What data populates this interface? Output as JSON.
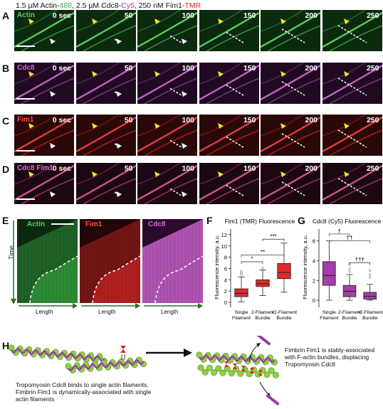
{
  "title": {
    "prefix": "1.5 µM Actin-",
    "actin_dye": "488",
    "mid1": ", 2.5 µM Cdc8-",
    "cdc8_dye": "Cy5",
    "mid2": ", 250 nM Fim1-",
    "fim1_dye": "TMR"
  },
  "panels": {
    "A": "A",
    "B": "B",
    "C": "C",
    "D": "D",
    "E": "E",
    "F": "F",
    "G": "G",
    "H": "H"
  },
  "rows": [
    {
      "label": "Actin",
      "cls": "actin",
      "label_color": "#54d35e"
    },
    {
      "label": "Cdc8",
      "cls": "cdc8",
      "label_color": "#d26bd0"
    },
    {
      "label": "Fim1",
      "cls": "fim1",
      "label_color": "#ff4b4b"
    },
    {
      "label": "Cdc8 Fim1",
      "cls": "merge",
      "label_color": "#e06bd0"
    }
  ],
  "times": [
    "0 sec",
    "50",
    "100",
    "150",
    "200",
    "250"
  ],
  "kymographs": [
    {
      "label": "Actin",
      "color": "#54d35e"
    },
    {
      "label": "Fim1",
      "color": "#ff4b4b"
    },
    {
      "label": "Cdc8",
      "color": "#d26bd0"
    }
  ],
  "kymo_axes": {
    "y": "Time",
    "x": "Length"
  },
  "chart_data": [
    {
      "type": "box",
      "title": "Fim1 (TMR) Fluorescence",
      "ylabel": "Fluorescence intensity, a.u.",
      "categories": [
        "Single Filament",
        "2-Filament Bundle",
        ">2-Filament Bundle"
      ],
      "yticks": [
        0,
        2,
        4,
        6,
        8,
        10,
        12
      ],
      "ylim": [
        -0.5,
        13
      ],
      "boxes": [
        {
          "min": 0.1,
          "q1": 1.0,
          "median": 1.6,
          "q3": 2.4,
          "max": 4.5,
          "outliers": [
            4.9,
            5.2,
            5.5
          ]
        },
        {
          "min": 1.2,
          "q1": 2.8,
          "median": 3.3,
          "q3": 4.0,
          "max": 5.7,
          "outliers": [
            6.0
          ]
        },
        {
          "min": 1.8,
          "q1": 4.2,
          "median": 5.3,
          "q3": 6.9,
          "max": 10.5,
          "outliers": []
        }
      ],
      "significance": [
        {
          "from": 0,
          "to": 1,
          "label": "*"
        },
        {
          "from": 0,
          "to": 2,
          "label": "**"
        },
        {
          "from": 1,
          "to": 2,
          "label": "***"
        }
      ],
      "color": "#e02a2a"
    },
    {
      "type": "box",
      "title": "Cdc8 (Cy5) Fluorescence",
      "ylabel": "Fluorescence intensity, a.u.",
      "categories": [
        "Single Filament",
        "2-Filament Bundle",
        ">2-Filament Bundle"
      ],
      "yticks": [
        0,
        2,
        4,
        6
      ],
      "ylim": [
        -0.5,
        7.2
      ],
      "boxes": [
        {
          "min": 0.0,
          "q1": 1.5,
          "median": 2.5,
          "q3": 3.9,
          "max": 6.0,
          "outliers": []
        },
        {
          "min": 0.0,
          "q1": 0.35,
          "median": 0.9,
          "q3": 1.5,
          "max": 2.6,
          "outliers": [
            2.9,
            3.2,
            3.6
          ]
        },
        {
          "min": 0.0,
          "q1": 0.1,
          "median": 0.4,
          "q3": 0.8,
          "max": 1.6,
          "outliers": [
            2.3,
            2.6,
            3.0
          ]
        }
      ],
      "significance": [
        {
          "from": 0,
          "to": 1,
          "label": "†"
        },
        {
          "from": 0,
          "to": 2,
          "label": "††"
        },
        {
          "from": 1,
          "to": 2,
          "label": "†††"
        }
      ],
      "color": "#a23ea8"
    }
  ],
  "schematic": {
    "left_caption": "Tropomyosin Cdc8 binds to single actin filaments, Fimbrin Fim1 is dynamically-associated with single actin filaments",
    "right_caption": "Fimbrin Fim1 is stably-associated with F-actin bundles, displacing Tropomyosin Cdc8",
    "colors": {
      "actin": "#8fd13f",
      "actin_edge": "#4f8f1f",
      "cdc8": "#9b3aa6",
      "fim1": "#d8232a"
    }
  }
}
